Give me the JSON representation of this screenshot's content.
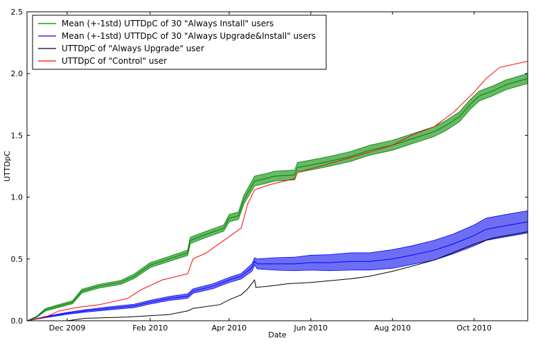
{
  "chart_data": {
    "type": "line",
    "xlabel": "Date",
    "ylabel": "UTTDpC",
    "ylim": [
      0,
      2.5
    ],
    "xlim": [
      "2009-11-01",
      "2010-11-10"
    ],
    "grid": false,
    "legend_position": "top-left",
    "x_ticks": [
      {
        "date": "2009-12-01",
        "label": "Dec 2009"
      },
      {
        "date": "2010-02-01",
        "label": "Feb 2010"
      },
      {
        "date": "2010-04-01",
        "label": "Apr 2010"
      },
      {
        "date": "2010-06-01",
        "label": "Jun 2010"
      },
      {
        "date": "2010-08-01",
        "label": "Aug 2010"
      },
      {
        "date": "2010-10-01",
        "label": "Oct 2010"
      }
    ],
    "y_ticks": [
      {
        "value": 0.0,
        "label": "0.0"
      },
      {
        "value": 0.5,
        "label": "0.5"
      },
      {
        "value": 1.0,
        "label": "1.0"
      },
      {
        "value": 1.5,
        "label": "1.5"
      },
      {
        "value": 2.0,
        "label": "2.0"
      },
      {
        "value": 2.5,
        "label": "2.5"
      }
    ],
    "series": [
      {
        "name": "Mean (+-1std) UTTDpC of 30 \"Always Install\" users",
        "color": "#008000",
        "band_color": "#4cad4c",
        "points": [
          {
            "x": "2009-11-01",
            "y": 0.0,
            "std": 0.0
          },
          {
            "x": "2009-11-08",
            "y": 0.03,
            "std": 0.005
          },
          {
            "x": "2009-11-15",
            "y": 0.09,
            "std": 0.01
          },
          {
            "x": "2009-11-25",
            "y": 0.12,
            "std": 0.012
          },
          {
            "x": "2009-12-05",
            "y": 0.15,
            "std": 0.012
          },
          {
            "x": "2009-12-12",
            "y": 0.24,
            "std": 0.015
          },
          {
            "x": "2009-12-25",
            "y": 0.28,
            "std": 0.015
          },
          {
            "x": "2010-01-10",
            "y": 0.31,
            "std": 0.016
          },
          {
            "x": "2010-01-20",
            "y": 0.36,
            "std": 0.018
          },
          {
            "x": "2010-02-01",
            "y": 0.45,
            "std": 0.02
          },
          {
            "x": "2010-02-15",
            "y": 0.5,
            "std": 0.02
          },
          {
            "x": "2010-03-01",
            "y": 0.55,
            "std": 0.022
          },
          {
            "x": "2010-03-03",
            "y": 0.65,
            "std": 0.025
          },
          {
            "x": "2010-03-15",
            "y": 0.7,
            "std": 0.025
          },
          {
            "x": "2010-03-28",
            "y": 0.75,
            "std": 0.025
          },
          {
            "x": "2010-04-01",
            "y": 0.83,
            "std": 0.03
          },
          {
            "x": "2010-04-08",
            "y": 0.85,
            "std": 0.03
          },
          {
            "x": "2010-04-12",
            "y": 0.98,
            "std": 0.035
          },
          {
            "x": "2010-04-20",
            "y": 1.13,
            "std": 0.04
          },
          {
            "x": "2010-04-28",
            "y": 1.15,
            "std": 0.04
          },
          {
            "x": "2010-05-05",
            "y": 1.17,
            "std": 0.04
          },
          {
            "x": "2010-05-20",
            "y": 1.18,
            "std": 0.04
          },
          {
            "x": "2010-05-22",
            "y": 1.24,
            "std": 0.04
          },
          {
            "x": "2010-06-01",
            "y": 1.26,
            "std": 0.04
          },
          {
            "x": "2010-06-15",
            "y": 1.29,
            "std": 0.04
          },
          {
            "x": "2010-07-01",
            "y": 1.33,
            "std": 0.04
          },
          {
            "x": "2010-07-15",
            "y": 1.38,
            "std": 0.04
          },
          {
            "x": "2010-08-01",
            "y": 1.42,
            "std": 0.04
          },
          {
            "x": "2010-08-15",
            "y": 1.47,
            "std": 0.04
          },
          {
            "x": "2010-09-01",
            "y": 1.53,
            "std": 0.04
          },
          {
            "x": "2010-09-10",
            "y": 1.58,
            "std": 0.04
          },
          {
            "x": "2010-09-20",
            "y": 1.65,
            "std": 0.04
          },
          {
            "x": "2010-09-28",
            "y": 1.75,
            "std": 0.04
          },
          {
            "x": "2010-10-05",
            "y": 1.82,
            "std": 0.04
          },
          {
            "x": "2010-10-15",
            "y": 1.86,
            "std": 0.04
          },
          {
            "x": "2010-10-25",
            "y": 1.91,
            "std": 0.04
          },
          {
            "x": "2010-11-10",
            "y": 1.96,
            "std": 0.04
          }
        ]
      },
      {
        "name": "Mean (+-1std) UTTDpC of 30 \"Always Upgrade&Install\" users",
        "color": "#0000ff",
        "band_color": "#5555f2",
        "points": [
          {
            "x": "2009-11-01",
            "y": 0.0,
            "std": 0.0
          },
          {
            "x": "2009-11-15",
            "y": 0.03,
            "std": 0.005
          },
          {
            "x": "2009-12-01",
            "y": 0.06,
            "std": 0.008
          },
          {
            "x": "2009-12-15",
            "y": 0.08,
            "std": 0.01
          },
          {
            "x": "2010-01-01",
            "y": 0.1,
            "std": 0.012
          },
          {
            "x": "2010-01-20",
            "y": 0.12,
            "std": 0.014
          },
          {
            "x": "2010-02-01",
            "y": 0.15,
            "std": 0.015
          },
          {
            "x": "2010-02-15",
            "y": 0.18,
            "std": 0.016
          },
          {
            "x": "2010-03-01",
            "y": 0.2,
            "std": 0.018
          },
          {
            "x": "2010-03-05",
            "y": 0.24,
            "std": 0.018
          },
          {
            "x": "2010-03-20",
            "y": 0.28,
            "std": 0.02
          },
          {
            "x": "2010-04-01",
            "y": 0.33,
            "std": 0.02
          },
          {
            "x": "2010-04-10",
            "y": 0.36,
            "std": 0.022
          },
          {
            "x": "2010-04-18",
            "y": 0.43,
            "std": 0.03
          },
          {
            "x": "2010-04-20",
            "y": 0.48,
            "std": 0.03
          },
          {
            "x": "2010-04-22",
            "y": 0.46,
            "std": 0.04
          },
          {
            "x": "2010-05-05",
            "y": 0.46,
            "std": 0.05
          },
          {
            "x": "2010-05-20",
            "y": 0.46,
            "std": 0.055
          },
          {
            "x": "2010-06-01",
            "y": 0.47,
            "std": 0.06
          },
          {
            "x": "2010-06-15",
            "y": 0.47,
            "std": 0.065
          },
          {
            "x": "2010-07-01",
            "y": 0.48,
            "std": 0.07
          },
          {
            "x": "2010-07-15",
            "y": 0.48,
            "std": 0.07
          },
          {
            "x": "2010-08-01",
            "y": 0.5,
            "std": 0.075
          },
          {
            "x": "2010-08-15",
            "y": 0.53,
            "std": 0.075
          },
          {
            "x": "2010-09-01",
            "y": 0.57,
            "std": 0.08
          },
          {
            "x": "2010-09-15",
            "y": 0.62,
            "std": 0.08
          },
          {
            "x": "2010-10-01",
            "y": 0.69,
            "std": 0.085
          },
          {
            "x": "2010-10-10",
            "y": 0.74,
            "std": 0.09
          },
          {
            "x": "2010-10-25",
            "y": 0.77,
            "std": 0.09
          },
          {
            "x": "2010-11-10",
            "y": 0.8,
            "std": 0.09
          }
        ]
      },
      {
        "name": "UTTDpC of \"Always Upgrade\" user",
        "color": "#000000",
        "points": [
          {
            "x": "2009-11-01",
            "y": 0.0
          },
          {
            "x": "2009-12-01",
            "y": 0.0
          },
          {
            "x": "2009-12-15",
            "y": 0.02
          },
          {
            "x": "2010-01-15",
            "y": 0.03
          },
          {
            "x": "2010-02-15",
            "y": 0.05
          },
          {
            "x": "2010-03-01",
            "y": 0.08
          },
          {
            "x": "2010-03-05",
            "y": 0.1
          },
          {
            "x": "2010-03-25",
            "y": 0.13
          },
          {
            "x": "2010-04-01",
            "y": 0.17
          },
          {
            "x": "2010-04-10",
            "y": 0.21
          },
          {
            "x": "2010-04-15",
            "y": 0.26
          },
          {
            "x": "2010-04-20",
            "y": 0.33
          },
          {
            "x": "2010-04-21",
            "y": 0.27
          },
          {
            "x": "2010-05-01",
            "y": 0.28
          },
          {
            "x": "2010-05-15",
            "y": 0.3
          },
          {
            "x": "2010-06-01",
            "y": 0.31
          },
          {
            "x": "2010-07-01",
            "y": 0.34
          },
          {
            "x": "2010-07-15",
            "y": 0.36
          },
          {
            "x": "2010-08-01",
            "y": 0.4
          },
          {
            "x": "2010-08-15",
            "y": 0.44
          },
          {
            "x": "2010-09-01",
            "y": 0.49
          },
          {
            "x": "2010-09-15",
            "y": 0.55
          },
          {
            "x": "2010-10-01",
            "y": 0.62
          },
          {
            "x": "2010-10-15",
            "y": 0.67
          },
          {
            "x": "2010-11-10",
            "y": 0.72
          }
        ]
      },
      {
        "name": "UTTDpC of \"Control\" user",
        "color": "#ff0000",
        "points": [
          {
            "x": "2009-11-01",
            "y": 0.0
          },
          {
            "x": "2009-11-15",
            "y": 0.03
          },
          {
            "x": "2009-11-25",
            "y": 0.08
          },
          {
            "x": "2009-12-10",
            "y": 0.11
          },
          {
            "x": "2009-12-25",
            "y": 0.13
          },
          {
            "x": "2010-01-15",
            "y": 0.18
          },
          {
            "x": "2010-01-25",
            "y": 0.25
          },
          {
            "x": "2010-02-10",
            "y": 0.33
          },
          {
            "x": "2010-03-01",
            "y": 0.38
          },
          {
            "x": "2010-03-05",
            "y": 0.5
          },
          {
            "x": "2010-03-15",
            "y": 0.55
          },
          {
            "x": "2010-04-01",
            "y": 0.68
          },
          {
            "x": "2010-04-10",
            "y": 0.75
          },
          {
            "x": "2010-04-15",
            "y": 0.95
          },
          {
            "x": "2010-04-20",
            "y": 1.06
          },
          {
            "x": "2010-05-01",
            "y": 1.1
          },
          {
            "x": "2010-05-20",
            "y": 1.15
          },
          {
            "x": "2010-05-22",
            "y": 1.2
          },
          {
            "x": "2010-06-01",
            "y": 1.23
          },
          {
            "x": "2010-07-01",
            "y": 1.32
          },
          {
            "x": "2010-08-01",
            "y": 1.42
          },
          {
            "x": "2010-08-15",
            "y": 1.5
          },
          {
            "x": "2010-09-01",
            "y": 1.57
          },
          {
            "x": "2010-09-15",
            "y": 1.68
          },
          {
            "x": "2010-10-01",
            "y": 1.85
          },
          {
            "x": "2010-10-10",
            "y": 1.96
          },
          {
            "x": "2010-10-20",
            "y": 2.05
          },
          {
            "x": "2010-11-10",
            "y": 2.1
          }
        ]
      }
    ]
  }
}
